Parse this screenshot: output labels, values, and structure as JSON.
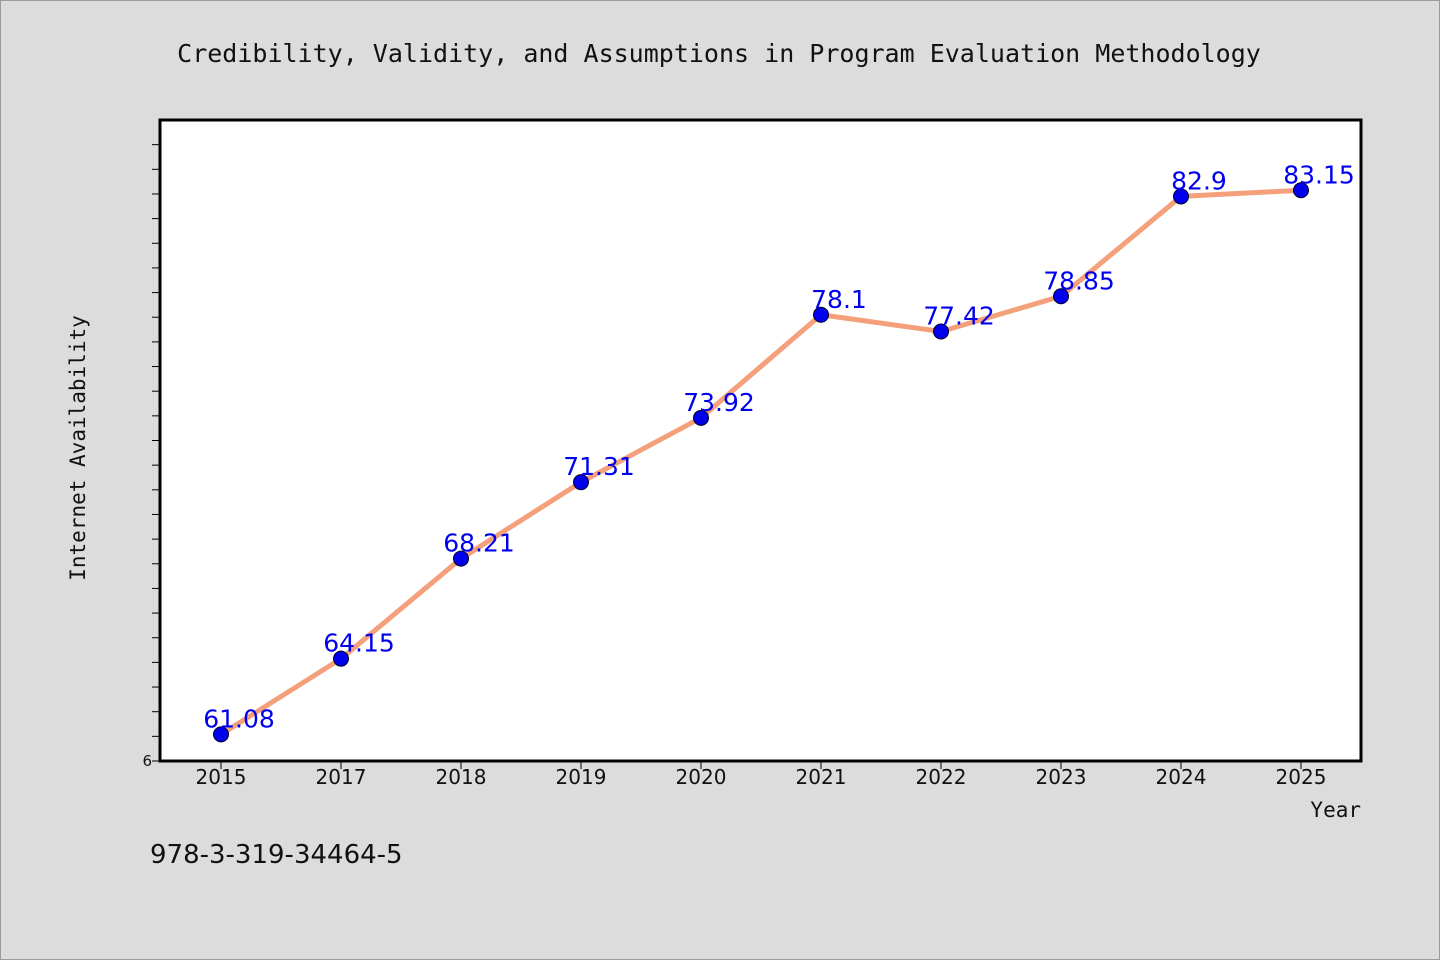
{
  "chart_data": {
    "type": "line",
    "title": "Credibility, Validity, and Assumptions in Program Evaluation Methodology",
    "xlabel": "Year",
    "ylabel": "Internet Availability",
    "categories": [
      "2015",
      "2017",
      "2018",
      "2019",
      "2020",
      "2021",
      "2022",
      "2023",
      "2024",
      "2025"
    ],
    "series": [
      {
        "values": [
          61.08,
          64.15,
          68.21,
          71.31,
          73.92,
          78.1,
          77.42,
          78.85,
          82.9,
          83.15
        ]
      }
    ],
    "data_labels": [
      "61.08",
      "64.15",
      "68.21",
      "71.31",
      "73.92",
      "78.1",
      "77.42",
      "78.85",
      "82.9",
      "83.15"
    ],
    "y_min_label": "6",
    "ylim": [
      60,
      86
    ],
    "grid": false,
    "colors": {
      "line": "#f4a07a",
      "marker": "#0000ee",
      "label": "#0000ee",
      "background": "#dcdcdc",
      "plot_area": "#ffffff"
    }
  },
  "footer": {
    "isbn": "978-3-319-34464-5"
  }
}
